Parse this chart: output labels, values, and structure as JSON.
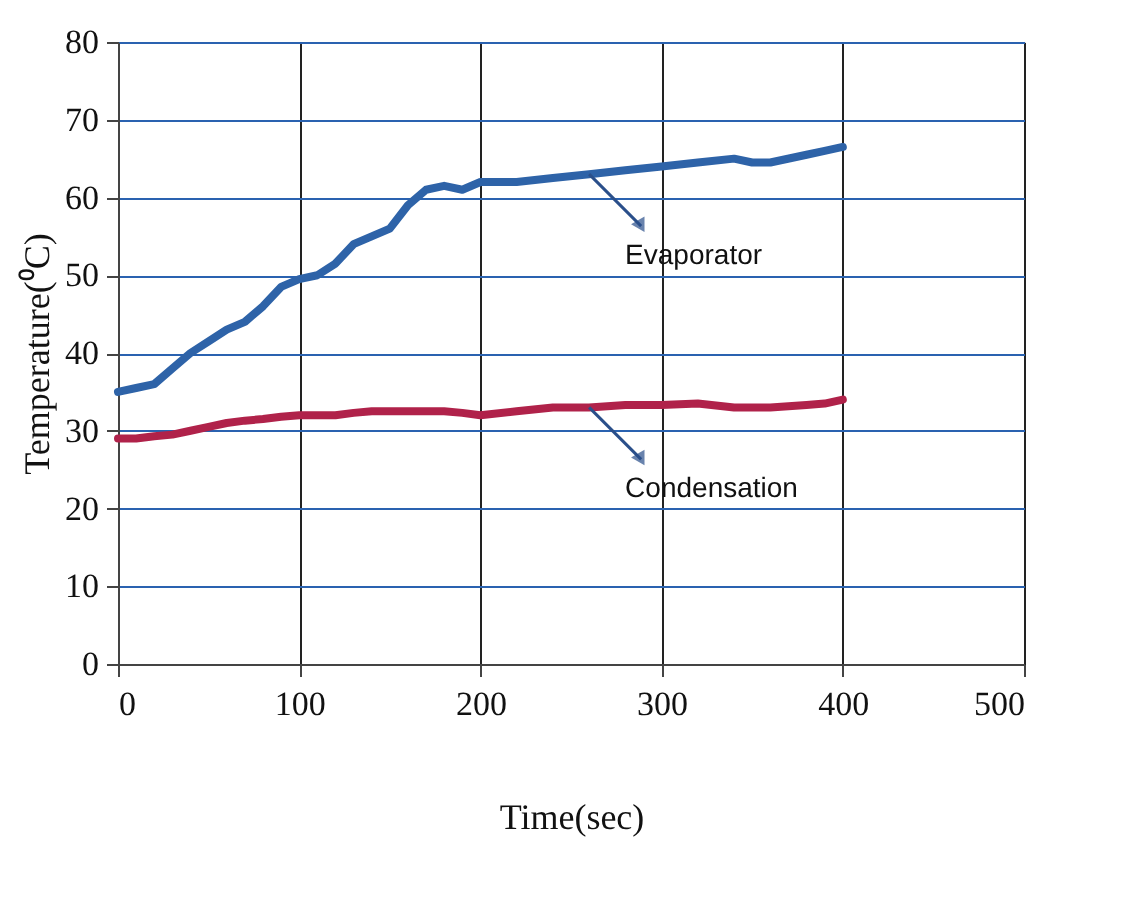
{
  "chart_data": {
    "type": "line",
    "xlabel": "Time(sec)",
    "ylabel": "Temperature(⁰C)",
    "xlim": [
      0,
      500
    ],
    "xticks": [
      0,
      100,
      200,
      300,
      400,
      500
    ],
    "ylim": [
      0,
      80
    ],
    "yticks": [
      0,
      10,
      20,
      30,
      40,
      50,
      60,
      70,
      80
    ],
    "grid": true,
    "marker": "none",
    "line_style": "solid",
    "x": [
      0,
      10,
      20,
      30,
      40,
      50,
      60,
      70,
      80,
      90,
      100,
      110,
      120,
      130,
      140,
      150,
      160,
      170,
      180,
      190,
      200,
      220,
      240,
      260,
      280,
      300,
      320,
      340,
      350,
      360,
      380,
      390,
      400
    ],
    "series": [
      {
        "name": "Evaporator",
        "color": "#2e63a8",
        "values": [
          35,
          35.5,
          36,
          38,
          40,
          41.5,
          43,
          44,
          46,
          48.5,
          49.5,
          50,
          51.5,
          54,
          55,
          56,
          59,
          61,
          61.5,
          61,
          62,
          62,
          62.5,
          63,
          63.5,
          64,
          64.5,
          65,
          64.5,
          64.5,
          65.5,
          66,
          66.5
        ]
      },
      {
        "name": "Condensation",
        "color": "#b0224a",
        "values": [
          29,
          29,
          29.3,
          29.5,
          30,
          30.5,
          31,
          31.3,
          31.5,
          31.8,
          32,
          32,
          32,
          32.3,
          32.5,
          32.5,
          32.5,
          32.5,
          32.5,
          32.3,
          32,
          32.5,
          33,
          33,
          33.3,
          33.3,
          33.5,
          33,
          33,
          33,
          33.3,
          33.5,
          34
        ]
      }
    ]
  }
}
